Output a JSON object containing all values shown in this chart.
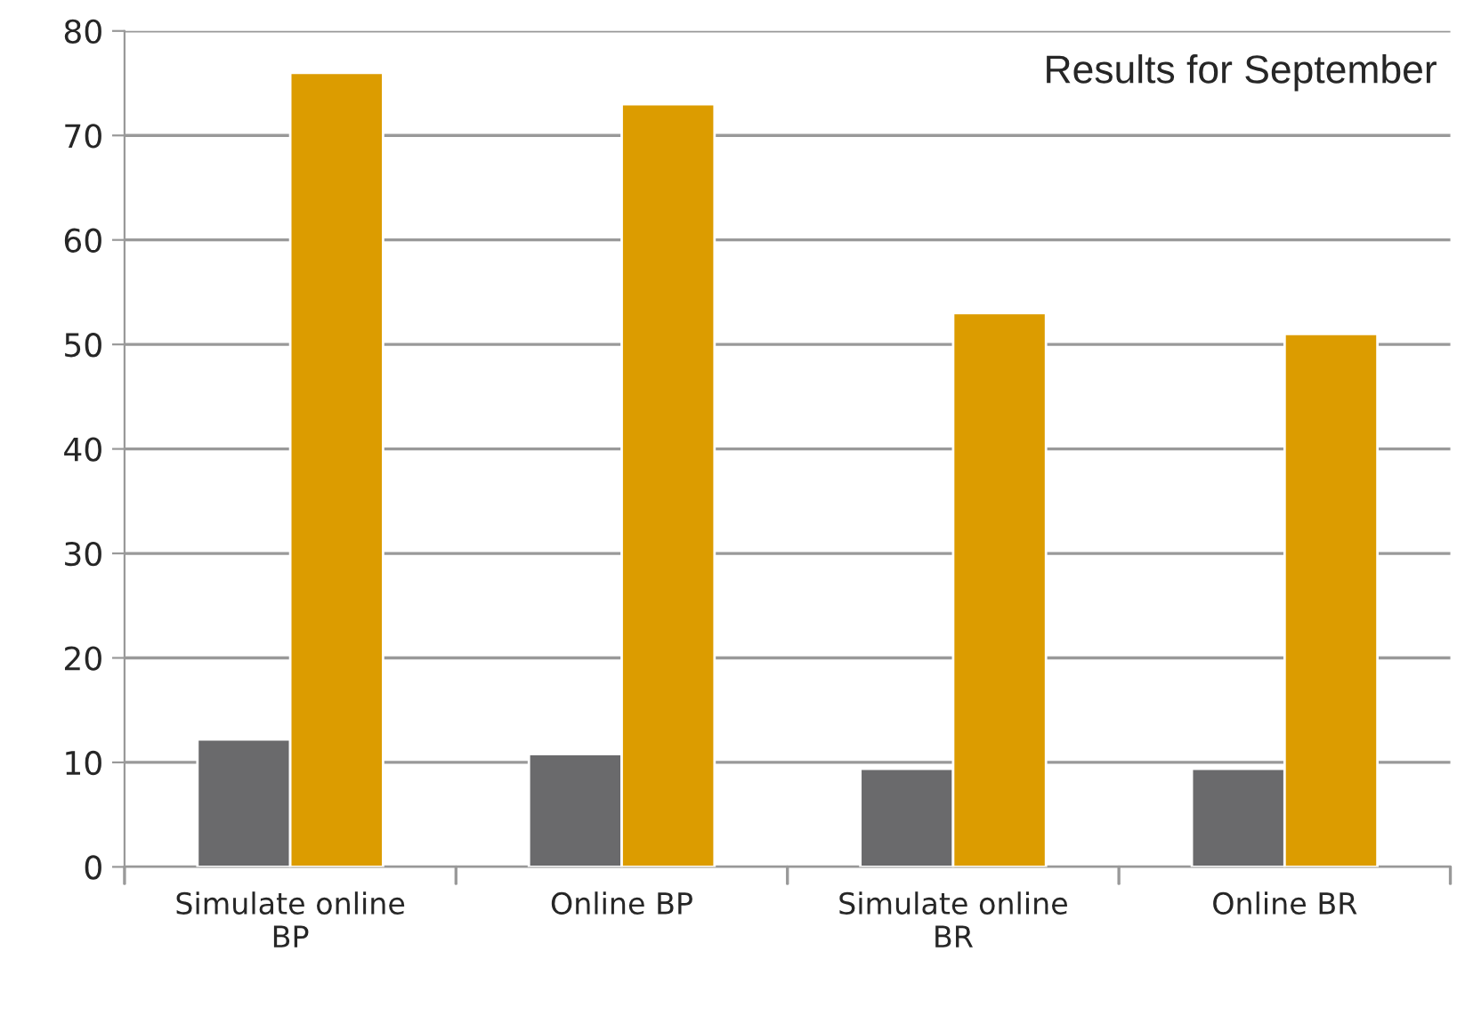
{
  "chart_data": {
    "type": "bar",
    "title": "Results for September",
    "categories": [
      "Simulate online\nBP",
      "Online BP",
      "Simulate online\nBR",
      "Online BR"
    ],
    "series": [
      {
        "color": "#6a6a6c",
        "values": [
          12.2,
          10.8,
          9.4,
          9.4
        ]
      },
      {
        "color": "#dc9c00",
        "values": [
          76,
          73,
          53,
          51
        ]
      }
    ],
    "ylim": [
      0,
      80
    ],
    "yticks": [
      0,
      10,
      20,
      30,
      40,
      50,
      60,
      70,
      80
    ],
    "grid": "y",
    "legend": false
  }
}
